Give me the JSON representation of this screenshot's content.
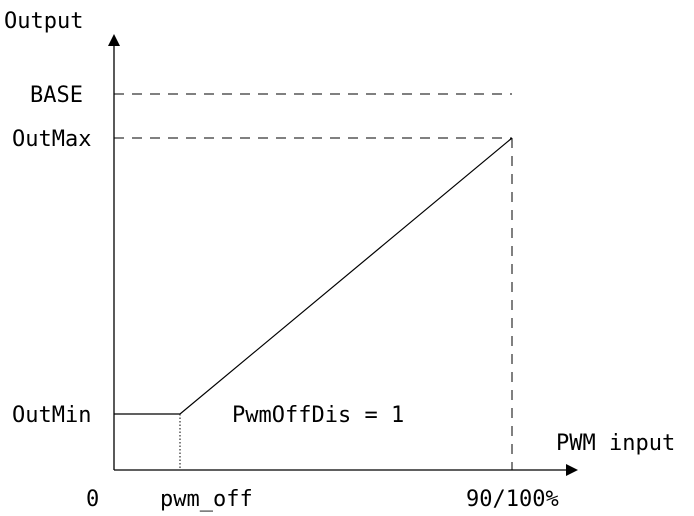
{
  "diagram": {
    "y_axis_label": "Output",
    "x_axis_label": "PWM input",
    "y_ticks": {
      "base": "BASE",
      "out_max": "OutMax",
      "out_min": "OutMin"
    },
    "x_ticks": {
      "origin": "0",
      "pwm_off": "pwm_off",
      "full": "90/100%"
    },
    "annotation": "PwmOffDis = 1"
  }
}
